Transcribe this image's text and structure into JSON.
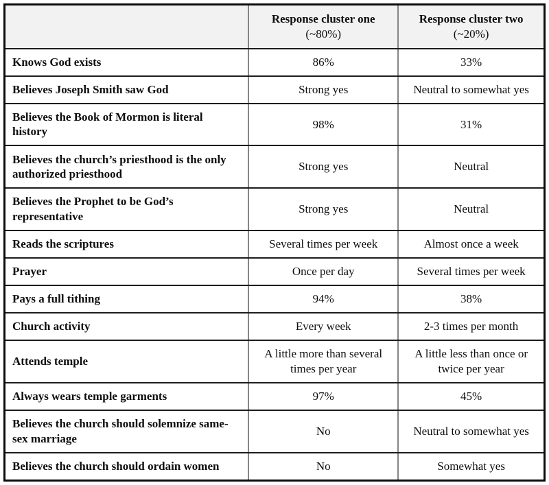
{
  "colors": {
    "header_bg": "#f2f2f2",
    "horizontal_rule": "#1c1c1c",
    "vertical_rule": "#858585",
    "outer_border": "#0a0a0a",
    "text": "#0d0d0d",
    "page_bg": "#ffffff"
  },
  "table": {
    "header": {
      "corner": "",
      "col1_title": "Response cluster one",
      "col1_sub": "(~80%)",
      "col2_title": "Response cluster two",
      "col2_sub": "(~20%)"
    },
    "rows": [
      {
        "label": "Knows God exists",
        "cluster_one": "86%",
        "cluster_two": "33%"
      },
      {
        "label": "Believes Joseph Smith saw God",
        "cluster_one": "Strong yes",
        "cluster_two": "Neutral to somewhat yes"
      },
      {
        "label": "Believes the Book of Mormon is literal history",
        "cluster_one": "98%",
        "cluster_two": "31%"
      },
      {
        "label": "Believes the church’s priesthood is the only authorized priesthood",
        "cluster_one": "Strong yes",
        "cluster_two": "Neutral"
      },
      {
        "label": "Believes the Prophet to be God’s representative",
        "cluster_one": "Strong yes",
        "cluster_two": "Neutral"
      },
      {
        "label": "Reads the scriptures",
        "cluster_one": "Several times per week",
        "cluster_two": "Almost once a week"
      },
      {
        "label": "Prayer",
        "cluster_one": "Once per day",
        "cluster_two": "Several times per week"
      },
      {
        "label": "Pays a full tithing",
        "cluster_one": "94%",
        "cluster_two": "38%"
      },
      {
        "label": "Church activity",
        "cluster_one": "Every week",
        "cluster_two": "2-3 times per month"
      },
      {
        "label": "Attends temple",
        "cluster_one": "A little more than several times per year",
        "cluster_two": "A little less than once or twice per year"
      },
      {
        "label": "Always wears temple garments",
        "cluster_one": "97%",
        "cluster_two": "45%"
      },
      {
        "label": "Believes the church should solemnize same-sex marriage",
        "cluster_one": "No",
        "cluster_two": "Neutral to somewhat yes"
      },
      {
        "label": "Believes the church should ordain women",
        "cluster_one": "No",
        "cluster_two": "Somewhat yes"
      }
    ]
  },
  "chart_data": {
    "type": "table",
    "title": "",
    "columns": [
      "",
      "Response cluster one (~80%)",
      "Response cluster two (~20%)"
    ],
    "rows": [
      [
        "Knows God exists",
        "86%",
        "33%"
      ],
      [
        "Believes Joseph Smith saw God",
        "Strong yes",
        "Neutral to somewhat yes"
      ],
      [
        "Believes the Book of Mormon is literal history",
        "98%",
        "31%"
      ],
      [
        "Believes the church’s priesthood is the only authorized priesthood",
        "Strong yes",
        "Neutral"
      ],
      [
        "Believes the Prophet to be God’s representative",
        "Strong yes",
        "Neutral"
      ],
      [
        "Reads the scriptures",
        "Several times per week",
        "Almost once a week"
      ],
      [
        "Prayer",
        "Once per day",
        "Several times per week"
      ],
      [
        "Pays a full tithing",
        "94%",
        "38%"
      ],
      [
        "Church activity",
        "Every week",
        "2-3 times per month"
      ],
      [
        "Attends temple",
        "A little more than several times per year",
        "A little less than once or twice per year"
      ],
      [
        "Always wears temple garments",
        "97%",
        "45%"
      ],
      [
        "Believes the church should solemnize same-sex marriage",
        "No",
        "Neutral to somewhat yes"
      ],
      [
        "Believes the church should ordain women",
        "No",
        "Somewhat yes"
      ]
    ]
  }
}
